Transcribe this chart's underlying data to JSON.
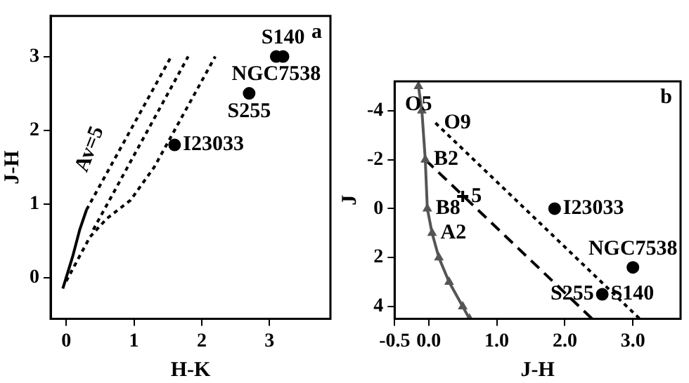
{
  "chart_data": [
    {
      "type": "scatter",
      "xlabel": "H-K",
      "ylabel": "J-H",
      "xlim": [
        -0.23,
        3.9
      ],
      "ylim": [
        -0.56,
        3.55
      ],
      "xticks": [
        0,
        1,
        2,
        3
      ],
      "yticks": [
        0,
        1,
        2,
        3
      ],
      "grid": false,
      "legend": false,
      "series": [
        {
          "type": "scatter",
          "color": "#000000",
          "marker": "circle",
          "x": [
            1.6,
            2.7,
            3.1,
            3.2
          ],
          "values": [
            1.8,
            2.5,
            3.0,
            3.0
          ]
        },
        {
          "type": "line",
          "color": "#000000",
          "line_style": "solid",
          "x": [
            -0.05,
            0.1,
            0.2,
            0.3
          ],
          "values": [
            -0.15,
            0.3,
            0.65,
            0.92
          ]
        },
        {
          "type": "line",
          "color": "#000000",
          "line_style": "dotted",
          "x": [
            0.3,
            1.55
          ],
          "values": [
            0.92,
            3.0
          ]
        },
        {
          "type": "line",
          "color": "#000000",
          "line_style": "dotted",
          "x": [
            0.4,
            1.8
          ],
          "values": [
            0.65,
            3.0
          ]
        },
        {
          "type": "line",
          "color": "#000000",
          "line_style": "dotted",
          "x": [
            0.0,
            0.35,
            0.6,
            0.95,
            1.3,
            2.2
          ],
          "values": [
            -0.05,
            0.55,
            0.8,
            1.05,
            1.5,
            3.0
          ]
        }
      ],
      "annotations": [
        "a",
        "Av=5",
        {
          "text": "S140",
          "x": 3.2,
          "y": 3.0
        },
        {
          "text": "NGC7538",
          "x": 3.1,
          "y": 3.0
        },
        {
          "text": "S255",
          "x": 2.7,
          "y": 2.5
        },
        {
          "text": "I23033",
          "x": 1.6,
          "y": 1.8
        }
      ]
    },
    {
      "type": "scatter",
      "xlabel": "J-H",
      "ylabel": "J",
      "xlim": [
        -0.5,
        3.7
      ],
      "ylim": [
        4.5,
        -5.2
      ],
      "xticks": [
        {
          "value": -0.5,
          "label": "-0.5"
        },
        {
          "value": 0,
          "label": "0.0"
        },
        {
          "value": 1,
          "label": "1.0"
        },
        {
          "value": 2,
          "label": "2.0"
        },
        {
          "value": 3,
          "label": "3.0"
        }
      ],
      "yticks": [
        -4,
        -2,
        0,
        2,
        4
      ],
      "grid": false,
      "legend": false,
      "series": [
        {
          "type": "scatter",
          "color": "#000000",
          "marker": "circle",
          "x": [
            1.85,
            3.0,
            2.55
          ],
          "values": [
            0.0,
            2.4,
            3.5
          ]
        },
        {
          "type": "line",
          "color": "#555555",
          "line_style": "solid",
          "marker": "triangle",
          "x": [
            -0.15,
            -0.1,
            -0.05,
            -0.02,
            0.05,
            0.15,
            0.3,
            0.5,
            0.6
          ],
          "values": [
            -5,
            -4,
            -2,
            0,
            1,
            2,
            3,
            4,
            4.5
          ]
        },
        {
          "type": "line",
          "color": "#000000",
          "line_style": "dotted",
          "x": [
            0.1,
            3.1
          ],
          "values": [
            -3.5,
            4.5
          ]
        },
        {
          "type": "line",
          "color": "#000000",
          "line_style": "dashed",
          "x": [
            -0.05,
            2.4
          ],
          "values": [
            -2,
            4.5
          ]
        },
        {
          "type": "scatter",
          "color": "#000000",
          "marker": "cross",
          "x": [
            0.5
          ],
          "values": [
            -0.5
          ]
        }
      ],
      "annotations": [
        "b",
        {
          "text": "O5",
          "x": -0.15,
          "y": -5
        },
        {
          "text": "O9",
          "x": 0.1,
          "y": -3.5
        },
        {
          "text": "B2",
          "x": -0.05,
          "y": -2
        },
        {
          "text": "B8",
          "x": -0.02,
          "y": 0
        },
        {
          "text": "A2",
          "x": 0.05,
          "y": 1
        },
        {
          "text": "5",
          "x": 0.5,
          "y": -0.5
        },
        {
          "text": "I23033",
          "x": 1.85,
          "y": 0.0
        },
        {
          "text": "NGC7538",
          "x": 3.0,
          "y": 2.4
        },
        {
          "text": "S140",
          "x": 2.55,
          "y": 3.5
        },
        {
          "text": "S255",
          "x": 2.55,
          "y": 3.5
        }
      ]
    }
  ]
}
